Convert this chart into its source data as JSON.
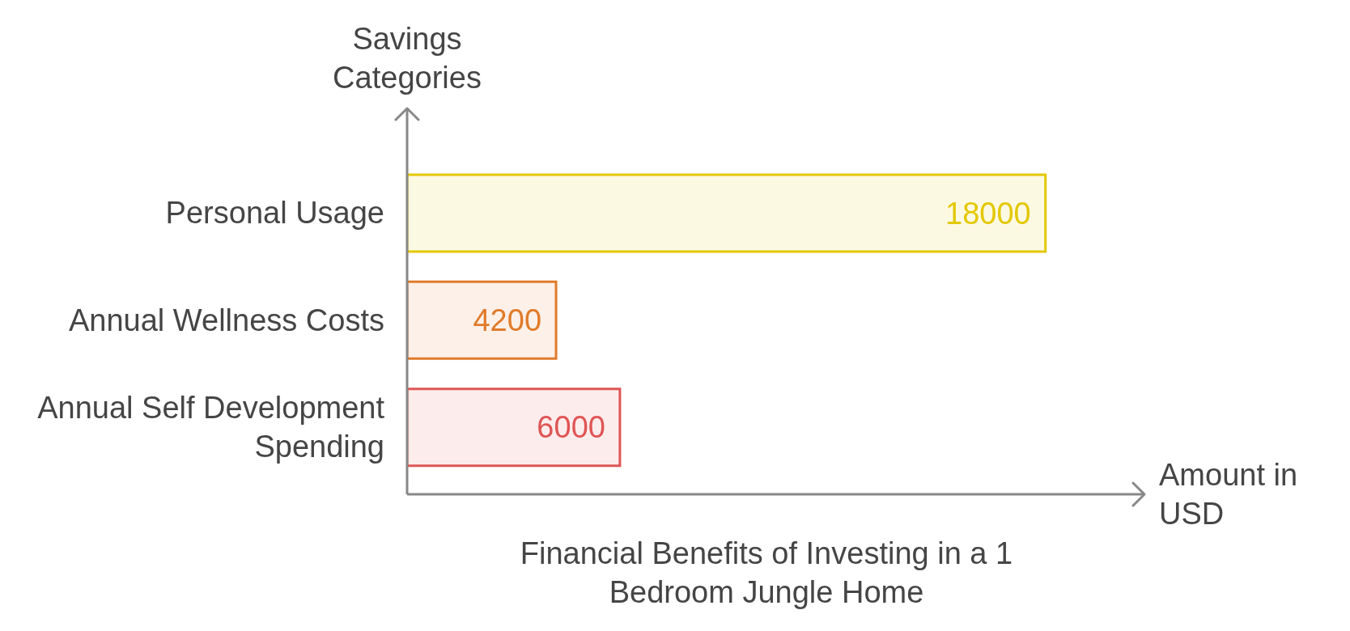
{
  "chart_data": {
    "type": "bar",
    "orientation": "horizontal",
    "title": "Financial Benefits of Investing in a 1 Bedroom Jungle Home",
    "xlabel": "Amount in USD",
    "ylabel": "Savings Categories",
    "categories": [
      "Personal Usage",
      "Annual Wellness Costs",
      "Annual Self Development Spending"
    ],
    "values": [
      18000,
      4200,
      6000
    ],
    "colors": [
      "#e3c800",
      "#e07b2a",
      "#e05555"
    ],
    "data_labels": true,
    "tick_labels": "y"
  }
}
